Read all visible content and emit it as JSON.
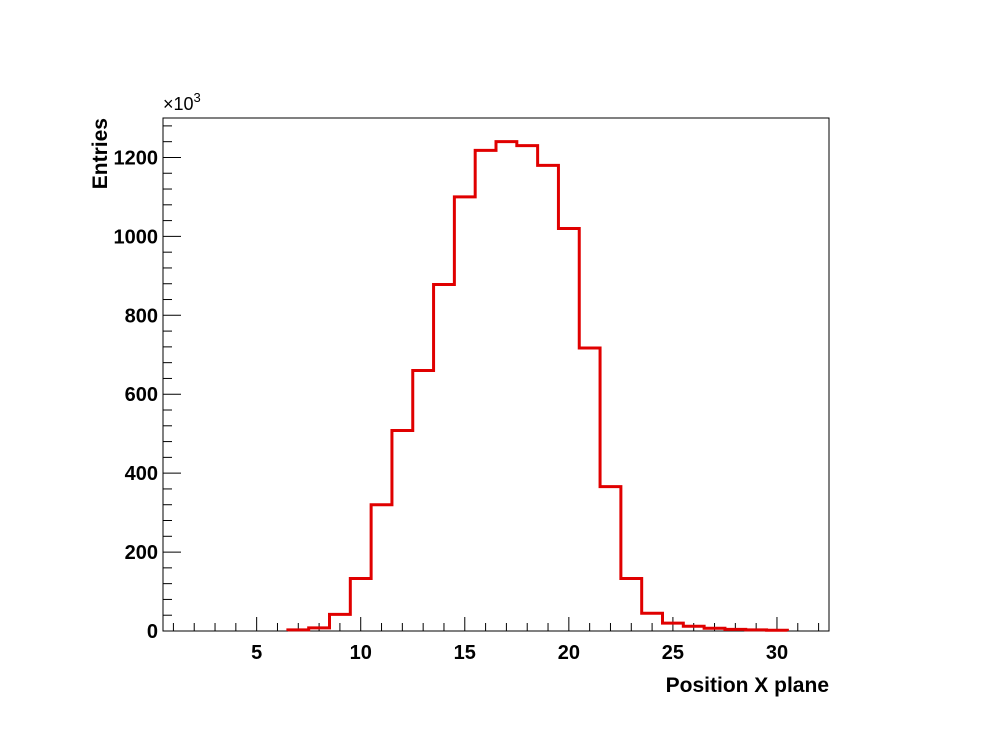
{
  "chart_data": {
    "type": "histogram",
    "xlabel": "Position X plane",
    "ylabel": "Entries",
    "y_multiplier": "×10",
    "y_multiplier_exp": "3",
    "xlim": [
      0.5,
      32.5
    ],
    "ylim": [
      0,
      1300
    ],
    "x_ticks": [
      5,
      10,
      15,
      20,
      25,
      30
    ],
    "x_tick_labels": [
      "5",
      "10",
      "15",
      "20",
      "25",
      "30"
    ],
    "y_ticks": [
      0,
      200,
      400,
      600,
      800,
      1000,
      1200
    ],
    "y_tick_labels": [
      "0",
      "200",
      "400",
      "600",
      "800",
      "1000",
      "1200"
    ],
    "grid": false,
    "line_color": "#e00000",
    "bins": [
      {
        "low": 6.5,
        "high": 7.5,
        "value": 3
      },
      {
        "low": 7.5,
        "high": 8.5,
        "value": 8
      },
      {
        "low": 8.5,
        "high": 9.5,
        "value": 42
      },
      {
        "low": 9.5,
        "high": 10.5,
        "value": 133
      },
      {
        "low": 10.5,
        "high": 11.5,
        "value": 320
      },
      {
        "low": 11.5,
        "high": 12.5,
        "value": 508
      },
      {
        "low": 12.5,
        "high": 13.5,
        "value": 660
      },
      {
        "low": 13.5,
        "high": 14.5,
        "value": 878
      },
      {
        "low": 14.5,
        "high": 15.5,
        "value": 1100
      },
      {
        "low": 15.5,
        "high": 16.5,
        "value": 1218
      },
      {
        "low": 16.5,
        "high": 17.5,
        "value": 1240
      },
      {
        "low": 17.5,
        "high": 18.5,
        "value": 1230
      },
      {
        "low": 18.5,
        "high": 19.5,
        "value": 1180
      },
      {
        "low": 19.5,
        "high": 20.5,
        "value": 1020
      },
      {
        "low": 20.5,
        "high": 21.5,
        "value": 717
      },
      {
        "low": 21.5,
        "high": 22.5,
        "value": 366
      },
      {
        "low": 22.5,
        "high": 23.5,
        "value": 133
      },
      {
        "low": 23.5,
        "high": 24.5,
        "value": 45
      },
      {
        "low": 24.5,
        "high": 25.5,
        "value": 20
      },
      {
        "low": 25.5,
        "high": 26.5,
        "value": 12
      },
      {
        "low": 26.5,
        "high": 27.5,
        "value": 7
      },
      {
        "low": 27.5,
        "high": 28.5,
        "value": 4
      },
      {
        "low": 28.5,
        "high": 29.5,
        "value": 3
      },
      {
        "low": 29.5,
        "high": 30.5,
        "value": 2
      }
    ]
  }
}
